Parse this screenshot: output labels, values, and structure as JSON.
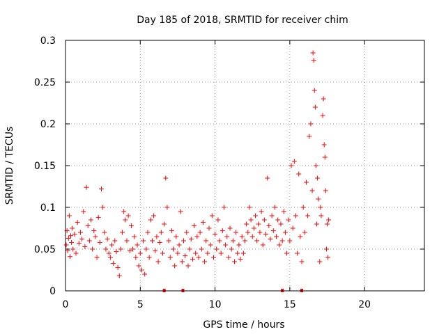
{
  "chart_data": {
    "type": "scatter",
    "title": "Day 185 of 2018, SRMTID for receiver chim",
    "xlabel": "GPS time / hours",
    "ylabel": "SRMTID / TECUs",
    "xlim": [
      0,
      24
    ],
    "ylim": [
      0,
      0.3
    ],
    "xticks": [
      0,
      5,
      10,
      15,
      20
    ],
    "xtick_labels": [
      "0",
      "5",
      "10",
      "15",
      "20"
    ],
    "yticks": [
      0,
      0.05,
      0.1,
      0.15,
      0.2,
      0.25,
      0.3
    ],
    "ytick_labels": [
      "0",
      "0.05",
      "0.1",
      "0.15",
      "0.2",
      "0.25",
      "0.3"
    ],
    "grid": true,
    "marker": "+",
    "color": "#ff0000",
    "series": [
      {
        "name": "SRMTID",
        "points": [
          [
            0.05,
            0.055
          ],
          [
            0.1,
            0.072
          ],
          [
            0.15,
            0.048
          ],
          [
            0.2,
            0.063
          ],
          [
            0.25,
            0.09
          ],
          [
            0.3,
            0.041
          ],
          [
            0.35,
            0.066
          ],
          [
            0.4,
            0.058
          ],
          [
            0.45,
            0.075
          ],
          [
            0.5,
            0.05
          ],
          [
            0.6,
            0.068
          ],
          [
            0.7,
            0.045
          ],
          [
            0.8,
            0.082
          ],
          [
            0.9,
            0.057
          ],
          [
            1.0,
            0.07
          ],
          [
            1.1,
            0.062
          ],
          [
            1.2,
            0.095
          ],
          [
            1.3,
            0.053
          ],
          [
            1.4,
            0.124
          ],
          [
            1.5,
            0.078
          ],
          [
            1.6,
            0.06
          ],
          [
            1.7,
            0.085
          ],
          [
            1.8,
            0.05
          ],
          [
            1.9,
            0.072
          ],
          [
            2.0,
            0.065
          ],
          [
            2.1,
            0.04
          ],
          [
            2.2,
            0.088
          ],
          [
            2.3,
            0.058
          ],
          [
            2.4,
            0.122
          ],
          [
            2.5,
            0.1
          ],
          [
            2.6,
            0.07
          ],
          [
            2.7,
            0.05
          ],
          [
            2.8,
            0.062
          ],
          [
            2.9,
            0.045
          ],
          [
            3.0,
            0.04
          ],
          [
            3.1,
            0.055
          ],
          [
            3.2,
            0.033
          ],
          [
            3.3,
            0.06
          ],
          [
            3.4,
            0.047
          ],
          [
            3.5,
            0.028
          ],
          [
            3.6,
            0.018
          ],
          [
            3.7,
            0.05
          ],
          [
            3.8,
            0.07
          ],
          [
            3.9,
            0.095
          ],
          [
            4.0,
            0.085
          ],
          [
            4.1,
            0.06
          ],
          [
            4.2,
            0.09
          ],
          [
            4.3,
            0.048
          ],
          [
            4.4,
            0.078
          ],
          [
            4.5,
            0.05
          ],
          [
            4.6,
            0.065
          ],
          [
            4.7,
            0.04
          ],
          [
            4.8,
            0.055
          ],
          [
            4.9,
            0.03
          ],
          [
            5.0,
            0.045
          ],
          [
            5.1,
            0.025
          ],
          [
            5.2,
            0.06
          ],
          [
            5.3,
            0.02
          ],
          [
            5.4,
            0.05
          ],
          [
            5.5,
            0.07
          ],
          [
            5.6,
            0.04
          ],
          [
            5.7,
            0.085
          ],
          [
            5.8,
            0.06
          ],
          [
            5.9,
            0.09
          ],
          [
            6.0,
            0.048
          ],
          [
            6.1,
            0.065
          ],
          [
            6.2,
            0.035
          ],
          [
            6.3,
            0.058
          ],
          [
            6.4,
            0.07
          ],
          [
            6.5,
            0.045
          ],
          [
            6.6,
            0.08
          ],
          [
            6.7,
            0.135
          ],
          [
            6.8,
            0.1
          ],
          [
            6.9,
            0.06
          ],
          [
            7.0,
            0.04
          ],
          [
            7.1,
            0.072
          ],
          [
            7.2,
            0.05
          ],
          [
            7.3,
            0.03
          ],
          [
            7.4,
            0.065
          ],
          [
            7.5,
            0.045
          ],
          [
            7.6,
            0.055
          ],
          [
            7.7,
            0.095
          ],
          [
            7.8,
            0.035
          ],
          [
            7.9,
            0.06
          ],
          [
            8.0,
            0.042
          ],
          [
            8.1,
            0.07
          ],
          [
            8.2,
            0.03
          ],
          [
            8.3,
            0.05
          ],
          [
            8.4,
            0.062
          ],
          [
            8.5,
            0.038
          ],
          [
            8.6,
            0.078
          ],
          [
            8.7,
            0.045
          ],
          [
            8.8,
            0.065
          ],
          [
            8.9,
            0.04
          ],
          [
            9.0,
            0.07
          ],
          [
            9.1,
            0.05
          ],
          [
            9.2,
            0.082
          ],
          [
            9.3,
            0.035
          ],
          [
            9.4,
            0.06
          ],
          [
            9.5,
            0.045
          ],
          [
            9.6,
            0.075
          ],
          [
            9.7,
            0.055
          ],
          [
            9.8,
            0.09
          ],
          [
            9.9,
            0.04
          ],
          [
            10.0,
            0.068
          ],
          [
            10.1,
            0.05
          ],
          [
            10.2,
            0.085
          ],
          [
            10.3,
            0.06
          ],
          [
            10.4,
            0.045
          ],
          [
            10.5,
            0.072
          ],
          [
            10.6,
            0.1
          ],
          [
            10.7,
            0.055
          ],
          [
            10.8,
            0.065
          ],
          [
            10.9,
            0.04
          ],
          [
            11.0,
            0.075
          ],
          [
            11.1,
            0.05
          ],
          [
            11.2,
            0.06
          ],
          [
            11.3,
            0.035
          ],
          [
            11.4,
            0.07
          ],
          [
            11.5,
            0.045
          ],
          [
            11.6,
            0.055
          ],
          [
            11.7,
            0.038
          ],
          [
            11.8,
            0.065
          ],
          [
            11.9,
            0.045
          ],
          [
            12.0,
            0.06
          ],
          [
            12.1,
            0.08
          ],
          [
            12.2,
            0.07
          ],
          [
            12.3,
            0.1
          ],
          [
            12.4,
            0.085
          ],
          [
            12.5,
            0.065
          ],
          [
            12.6,
            0.075
          ],
          [
            12.7,
            0.09
          ],
          [
            12.8,
            0.06
          ],
          [
            12.9,
            0.08
          ],
          [
            13.0,
            0.07
          ],
          [
            13.1,
            0.095
          ],
          [
            13.2,
            0.055
          ],
          [
            13.3,
            0.085
          ],
          [
            13.4,
            0.068
          ],
          [
            13.5,
            0.135
          ],
          [
            13.6,
            0.078
          ],
          [
            13.7,
            0.062
          ],
          [
            13.8,
            0.09
          ],
          [
            13.9,
            0.072
          ],
          [
            14.0,
            0.1
          ],
          [
            14.1,
            0.065
          ],
          [
            14.2,
            0.085
          ],
          [
            14.3,
            0.055
          ],
          [
            14.4,
            0.08
          ],
          [
            14.5,
            0.06
          ],
          [
            14.6,
            0.095
          ],
          [
            14.7,
            0.07
          ],
          [
            14.8,
            0.045
          ],
          [
            14.9,
            0.085
          ],
          [
            15.0,
            0.06
          ],
          [
            15.1,
            0.15
          ],
          [
            15.2,
            0.075
          ],
          [
            15.3,
            0.155
          ],
          [
            15.4,
            0.09
          ],
          [
            15.5,
            0.045
          ],
          [
            15.6,
            0.14
          ],
          [
            15.7,
            0.065
          ],
          [
            15.8,
            0.035
          ],
          [
            15.9,
            0.1
          ],
          [
            16.0,
            0.07
          ],
          [
            16.1,
            0.13
          ],
          [
            16.2,
            0.09
          ],
          [
            16.3,
            0.185
          ],
          [
            16.4,
            0.2
          ],
          [
            16.5,
            0.12
          ],
          [
            16.55,
            0.285
          ],
          [
            16.6,
            0.276
          ],
          [
            16.65,
            0.24
          ],
          [
            16.7,
            0.22
          ],
          [
            16.75,
            0.15
          ],
          [
            16.8,
            0.08
          ],
          [
            16.85,
            0.135
          ],
          [
            16.9,
            0.11
          ],
          [
            17.0,
            0.035
          ],
          [
            17.05,
            0.1
          ],
          [
            17.1,
            0.09
          ],
          [
            17.2,
            0.21
          ],
          [
            17.25,
            0.23
          ],
          [
            17.3,
            0.175
          ],
          [
            17.35,
            0.16
          ],
          [
            17.4,
            0.12
          ],
          [
            17.45,
            0.05
          ],
          [
            17.5,
            0.08
          ],
          [
            17.55,
            0.04
          ],
          [
            17.6,
            0.085
          ]
        ]
      }
    ],
    "flag_marks_x": [
      6.6,
      7.85,
      14.5,
      15.8
    ]
  }
}
